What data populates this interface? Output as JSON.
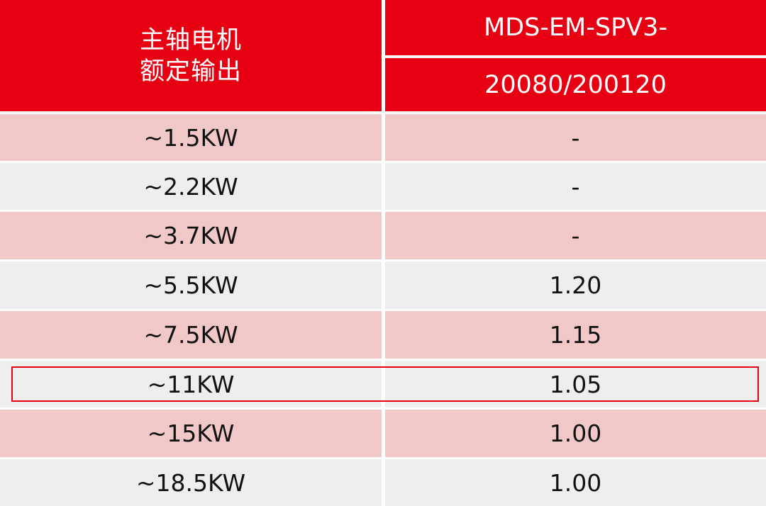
{
  "header": {
    "left_line1": "主轴电机",
    "left_line2": "额定输出",
    "right_line1": "MDS-EM-SPV3-",
    "right_line2": "20080/200120"
  },
  "rows": [
    {
      "output": "~1.5KW",
      "value": "-"
    },
    {
      "output": "~2.2KW",
      "value": "-"
    },
    {
      "output": "~3.7KW",
      "value": "-"
    },
    {
      "output": "~5.5KW",
      "value": "1.20"
    },
    {
      "output": "~7.5KW",
      "value": "1.15"
    },
    {
      "output": "~11KW",
      "value": "1.05"
    },
    {
      "output": "~15KW",
      "value": "1.00"
    },
    {
      "output": "~18.5KW",
      "value": "1.00"
    }
  ],
  "highlighted_row": "~11KW",
  "colors": {
    "header": "#e60012",
    "row_pink": "#f0c8c8",
    "row_grey": "#eeeeee",
    "highlight_border": "#e60012"
  }
}
